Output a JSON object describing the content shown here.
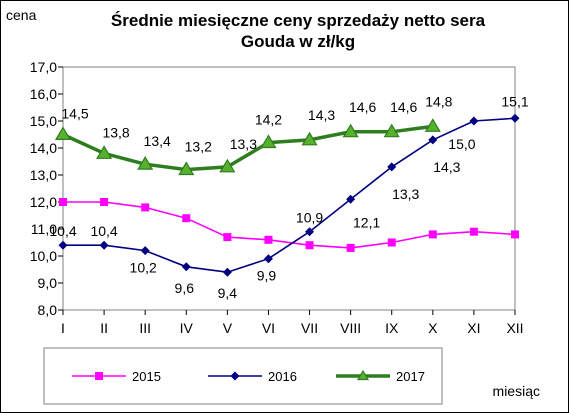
{
  "chart_data": {
    "type": "line",
    "title": "Średnie miesięczne ceny sprzedaży netto sera Gouda w zł/kg",
    "title_lines": [
      "Średnie miesięczne ceny sprzedaży netto sera",
      "Gouda w zł/kg"
    ],
    "ylabel": "cena",
    "xlabel": "miesiąc",
    "ylim": [
      8.0,
      17.0
    ],
    "y_ticks": [
      "8,0",
      "9,0",
      "10,0",
      "11,0",
      "12,0",
      "13,0",
      "14,0",
      "15,0",
      "16,0",
      "17,0"
    ],
    "categories": [
      "I",
      "II",
      "III",
      "IV",
      "V",
      "VI",
      "VII",
      "VIII",
      "IX",
      "X",
      "XI",
      "XII"
    ],
    "grid": false,
    "legend_position": "bottom",
    "series": [
      {
        "name": "2015",
        "color": "#ff00ff",
        "marker": "square",
        "values": [
          12.0,
          12.0,
          11.8,
          11.4,
          10.7,
          10.6,
          10.4,
          10.3,
          10.5,
          10.8,
          10.9,
          10.8
        ],
        "labels": [
          "",
          "",
          "",
          "",
          "",
          "",
          "",
          "",
          "",
          "",
          "",
          ""
        ]
      },
      {
        "name": "2016",
        "color": "#000080",
        "marker": "diamond",
        "values": [
          10.4,
          10.4,
          10.2,
          9.6,
          9.4,
          9.9,
          10.9,
          12.1,
          13.3,
          14.3,
          15.0,
          15.1
        ],
        "labels": [
          "10,4",
          "10,4",
          "10,2",
          "9,6",
          "9,4",
          "9,9",
          "10,9",
          "12,1",
          "13,3",
          "14,3",
          "15,0",
          "15,1"
        ]
      },
      {
        "name": "2017",
        "color": "#2e7d1e",
        "marker": "triangle",
        "values": [
          14.5,
          13.8,
          13.4,
          13.2,
          13.3,
          14.2,
          14.3,
          14.6,
          14.6,
          14.8,
          null,
          null
        ],
        "labels": [
          "14,5",
          "13,8",
          "13,4",
          "13,2",
          "13,3",
          "14,2",
          "14,3",
          "14,6",
          "14,6",
          "14,8",
          "",
          ""
        ]
      }
    ]
  }
}
